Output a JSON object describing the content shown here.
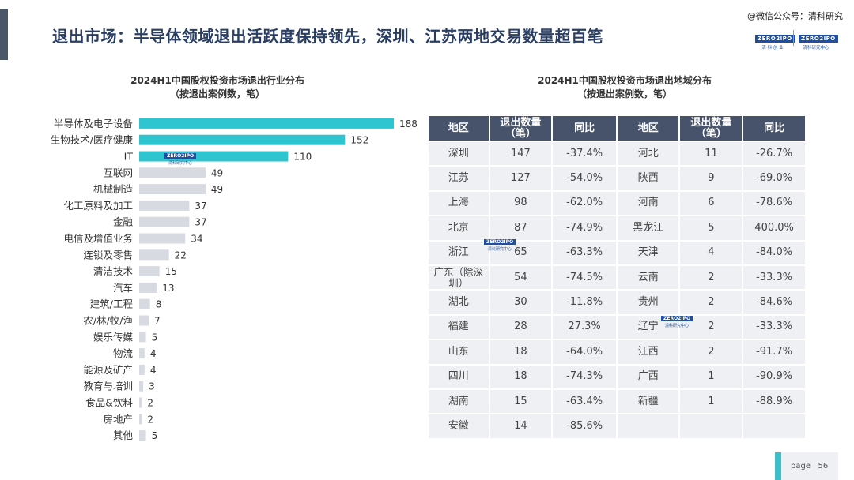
{
  "header": {
    "title": "退出市场：半导体领域退出活跃度保持领先，深圳、江苏两地交易数量超百笔",
    "watermark": "@微信公众号：清科研究",
    "logo1_top": "ZERO2IPO",
    "logo1_sub": "清 科 创 业",
    "logo2_top": "ZERO2IPO",
    "logo2_sub": "清科研究中心"
  },
  "left": {
    "title_line1": "2024H1中国股权投资市场退出行业分布",
    "title_line2": "（按退出案例数，笔）"
  },
  "right": {
    "title_line1": "2024H1中国股权投资市场退出地域分布",
    "title_line2": "（按退出案例数，笔）"
  },
  "wm": {
    "top": "ZERO2IPO",
    "sub": "清科研究中心"
  },
  "chart_data": {
    "type": "bar",
    "orientation": "horizontal",
    "title": "2024H1中国股权投资市场退出行业分布",
    "subtitle": "（按退出案例数，笔）",
    "categories": [
      "半导体及电子设备",
      "生物技术/医疗健康",
      "IT",
      "互联网",
      "机械制造",
      "化工原料及加工",
      "金融",
      "电信及增值业务",
      "连锁及零售",
      "清洁技术",
      "汽车",
      "建筑/工程",
      "农/林/牧/渔",
      "娱乐传媒",
      "物流",
      "能源及矿产",
      "教育与培训",
      "食品&饮料",
      "房地产",
      "其他"
    ],
    "values": [
      188,
      152,
      110,
      49,
      49,
      37,
      37,
      34,
      22,
      15,
      13,
      8,
      7,
      5,
      4,
      4,
      3,
      2,
      2,
      5
    ],
    "xlim": [
      0,
      188
    ],
    "grid": false,
    "highlight_count": 3,
    "colors": {
      "highlight": "#2fc5d0",
      "normal": "#d7dae0"
    }
  },
  "table": {
    "headers": [
      "地区",
      "退出数量\n（笔）",
      "同比",
      "地区",
      "退出数量\n（笔）",
      "同比"
    ],
    "rows": [
      [
        "深圳",
        "147",
        "-37.4%",
        "河北",
        "11",
        "-26.7%"
      ],
      [
        "江苏",
        "127",
        "-54.0%",
        "陕西",
        "9",
        "-69.0%"
      ],
      [
        "上海",
        "98",
        "-62.0%",
        "河南",
        "6",
        "-78.6%"
      ],
      [
        "北京",
        "87",
        "-74.9%",
        "黑龙江",
        "5",
        "400.0%"
      ],
      [
        "浙江",
        "65",
        "-63.3%",
        "天津",
        "4",
        "-84.0%"
      ],
      [
        "广东（除深圳）",
        "54",
        "-74.5%",
        "云南",
        "2",
        "-33.3%"
      ],
      [
        "湖北",
        "30",
        "-11.8%",
        "贵州",
        "2",
        "-84.6%"
      ],
      [
        "福建",
        "28",
        "27.3%",
        "辽宁",
        "2",
        "-33.3%"
      ],
      [
        "山东",
        "18",
        "-64.0%",
        "江西",
        "2",
        "-91.7%"
      ],
      [
        "四川",
        "18",
        "-74.3%",
        "广西",
        "1",
        "-90.9%"
      ],
      [
        "湖南",
        "15",
        "-63.4%",
        "新疆",
        "1",
        "-88.9%"
      ],
      [
        "安徽",
        "14",
        "-85.6%",
        "",
        "",
        ""
      ]
    ]
  },
  "footer": {
    "page_label": "page",
    "page_number": "56"
  }
}
